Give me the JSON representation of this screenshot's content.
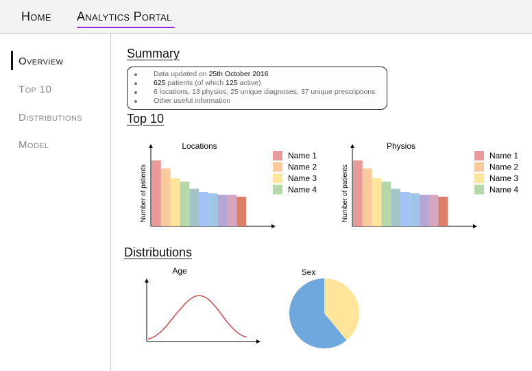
{
  "nav": {
    "home": "Home",
    "portal": "Analytics Portal"
  },
  "sidebar": {
    "items": [
      {
        "label": "Overview",
        "active": true
      },
      {
        "label": "Top 10",
        "active": false
      },
      {
        "label": "Distributions",
        "active": false
      },
      {
        "label": "Model",
        "active": false
      }
    ]
  },
  "summary": {
    "title": "Summary",
    "line1_prefix": "Data updated on ",
    "line1_date": "25th October 2016",
    "line2_count": "625",
    "line2_mid": " patients (of which ",
    "line2_active": "125",
    "line2_suffix": " active)",
    "line3": "6 locations, 13 physios, 25 unique diagnoses, 37 unique prescriptions",
    "line4": "Other useful information"
  },
  "top10": {
    "title": "Top 10"
  },
  "distributions": {
    "title": "Distributions"
  },
  "colors": {
    "bars": [
      "#ea9999",
      "#f9cb9c",
      "#ffe599",
      "#b6d7a8",
      "#a2c4c9",
      "#a4c2f4",
      "#9fc5e8",
      "#b4a7d6",
      "#d5a6bd",
      "#dd7e6b"
    ],
    "age_curve": "#d32f2f",
    "pie_female": "#ffe599",
    "pie_male": "#6fa8dc"
  },
  "chart_data": [
    {
      "type": "bar",
      "title": "Locations",
      "ylabel": "Number of patients",
      "xlabel": "",
      "values": [
        100,
        88,
        73,
        68,
        57,
        52,
        50,
        48,
        48,
        45
      ],
      "ylim": [
        0,
        125
      ],
      "legend": [
        "Name 1",
        "Name 2",
        "Name 3",
        "Name 4"
      ],
      "legend_position": "right"
    },
    {
      "type": "bar",
      "title": "Physios",
      "ylabel": "Number of patients",
      "xlabel": "",
      "values": [
        100,
        88,
        73,
        68,
        57,
        52,
        50,
        48,
        48,
        45
      ],
      "ylim": [
        0,
        125
      ],
      "legend": [
        "Name 1",
        "Name 2",
        "Name 3",
        "Name 4"
      ],
      "legend_position": "right"
    },
    {
      "type": "line",
      "title": "Age",
      "x": [
        0,
        1,
        2,
        3,
        4,
        5,
        6,
        7,
        8,
        9,
        10,
        11,
        12,
        13,
        14,
        15,
        16,
        17,
        18,
        19,
        20
      ],
      "y": [
        0.05,
        0.09,
        0.16,
        0.25,
        0.37,
        0.5,
        0.63,
        0.75,
        0.86,
        0.94,
        0.98,
        0.97,
        0.92,
        0.82,
        0.7,
        0.56,
        0.42,
        0.3,
        0.2,
        0.13,
        0.09
      ],
      "ylim": [
        0,
        1.35
      ]
    },
    {
      "type": "pie",
      "title": "Sex",
      "slices": [
        {
          "value": 39
        },
        {
          "value": 61
        }
      ]
    }
  ]
}
